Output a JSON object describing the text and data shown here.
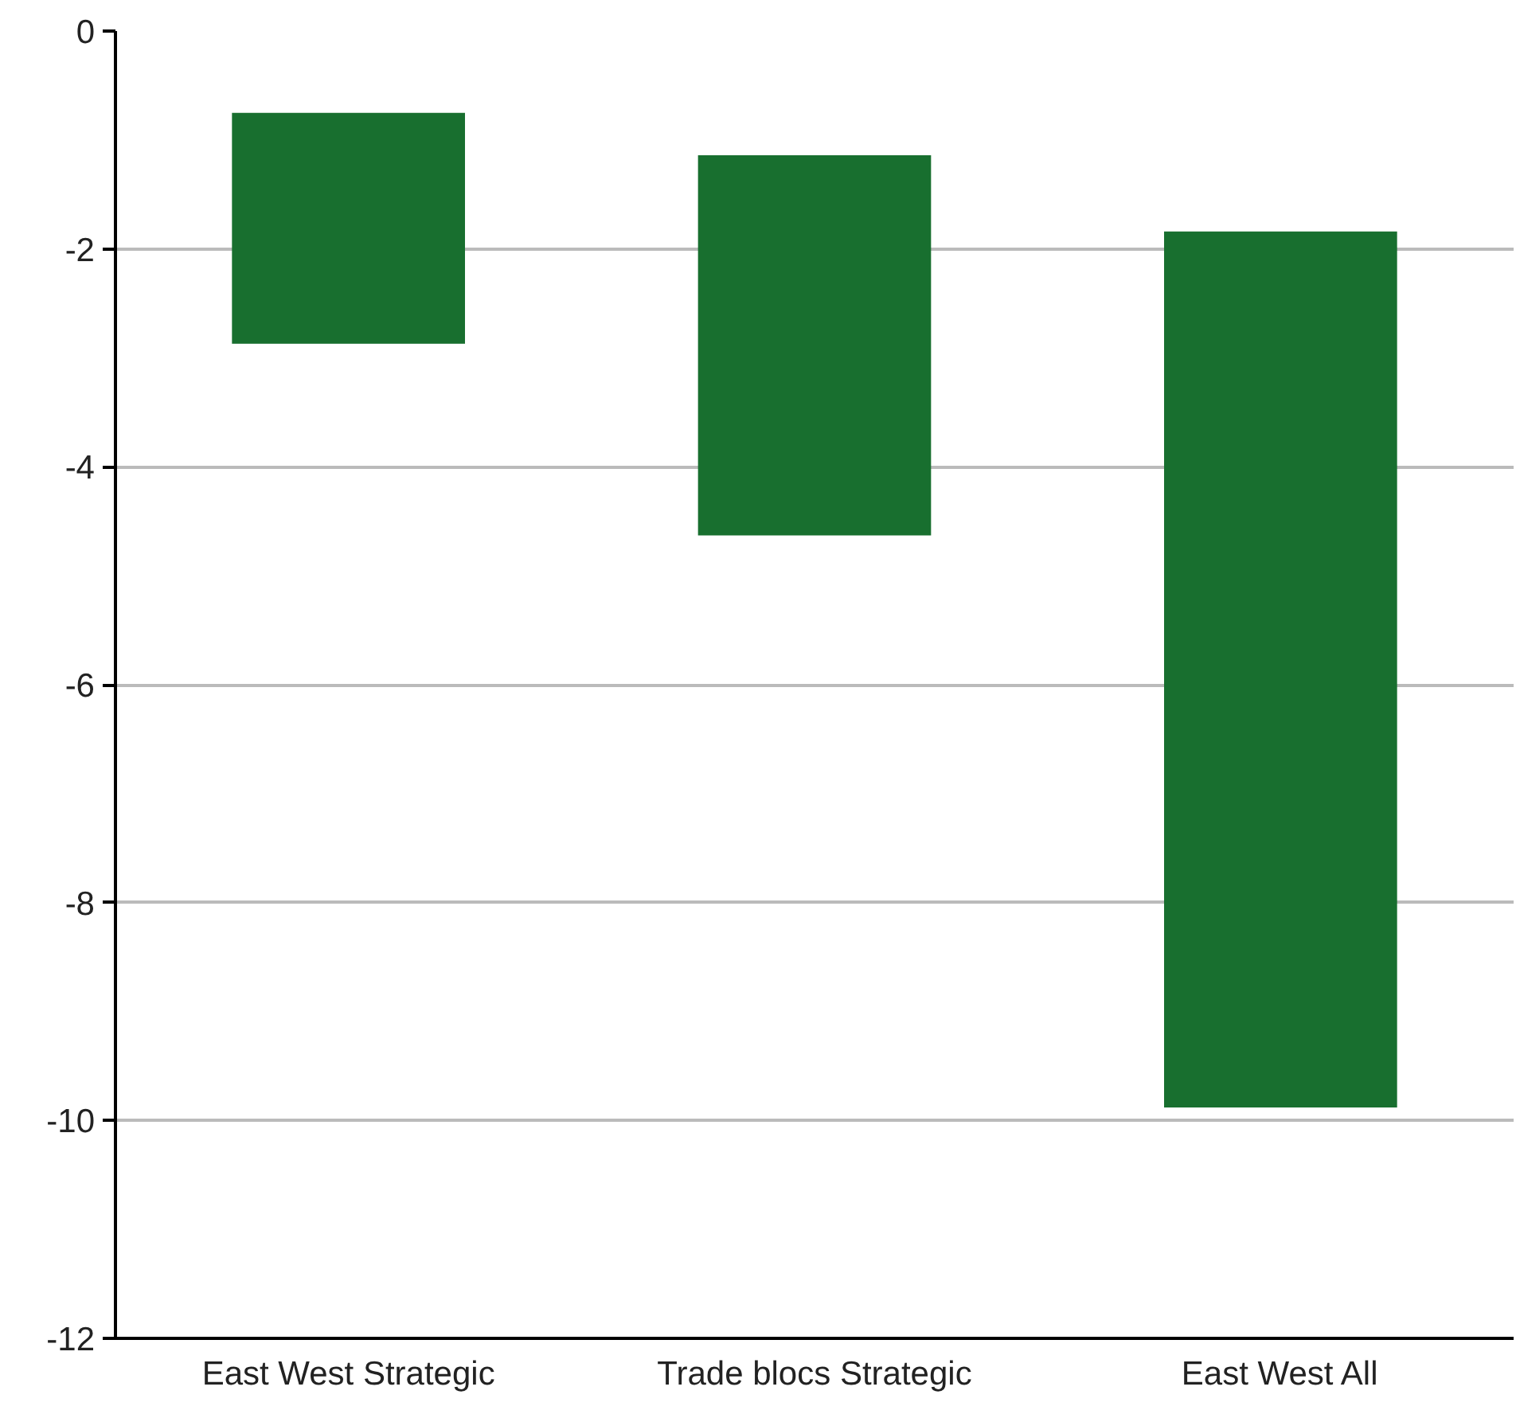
{
  "chart_data": {
    "type": "bar",
    "categories": [
      "East West Strategic",
      "Trade blocs Strategic",
      "East West All"
    ],
    "base": [
      -0.75,
      -1.14,
      -1.84
    ],
    "values": [
      -2.12,
      -3.49,
      -8.04
    ],
    "color": "#186f2f",
    "ylim": [
      -12,
      0
    ],
    "yticks": [
      0,
      -2,
      -4,
      -6,
      -8,
      -10,
      -12
    ],
    "grid": "y"
  }
}
